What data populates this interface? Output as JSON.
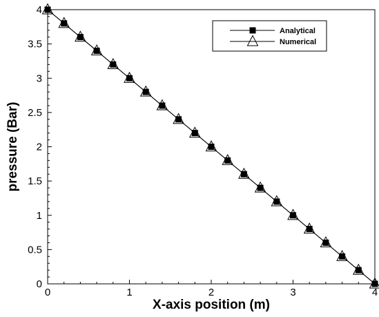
{
  "chart_data": {
    "type": "line",
    "title": "",
    "xlabel": "X-axis position (m)",
    "ylabel": "pressure (Bar)",
    "xlim": [
      0,
      4
    ],
    "ylim": [
      0,
      4
    ],
    "x_ticks": [
      "0",
      "1",
      "2",
      "3",
      "4"
    ],
    "y_ticks": [
      "0",
      "0.5",
      "1",
      "1.5",
      "2",
      "2.5",
      "3",
      "3.5",
      "4"
    ],
    "grid": false,
    "legend_position": "top-right",
    "series": [
      {
        "name": "Analytical",
        "marker": "filled-square",
        "color": "#000000",
        "x": [
          0,
          0.2,
          0.4,
          0.6,
          0.8,
          1.0,
          1.2,
          1.4,
          1.6,
          1.8,
          2.0,
          2.2,
          2.4,
          2.6,
          2.8,
          3.0,
          3.2,
          3.4,
          3.6,
          3.8,
          4.0
        ],
        "y": [
          4.0,
          3.8,
          3.6,
          3.4,
          3.2,
          3.0,
          2.8,
          2.6,
          2.4,
          2.2,
          2.0,
          1.8,
          1.6,
          1.4,
          1.2,
          1.0,
          0.8,
          0.6,
          0.4,
          0.2,
          0.0
        ]
      },
      {
        "name": "Numerical",
        "marker": "open-triangle",
        "color": "#000000",
        "x": [
          0,
          0.2,
          0.4,
          0.6,
          0.8,
          1.0,
          1.2,
          1.4,
          1.6,
          1.8,
          2.0,
          2.2,
          2.4,
          2.6,
          2.8,
          3.0,
          3.2,
          3.4,
          3.6,
          3.8,
          4.0
        ],
        "y": [
          4.0,
          3.8,
          3.6,
          3.4,
          3.2,
          3.0,
          2.8,
          2.6,
          2.4,
          2.2,
          2.0,
          1.8,
          1.6,
          1.4,
          1.2,
          1.0,
          0.8,
          0.6,
          0.4,
          0.2,
          0.0
        ]
      }
    ]
  }
}
